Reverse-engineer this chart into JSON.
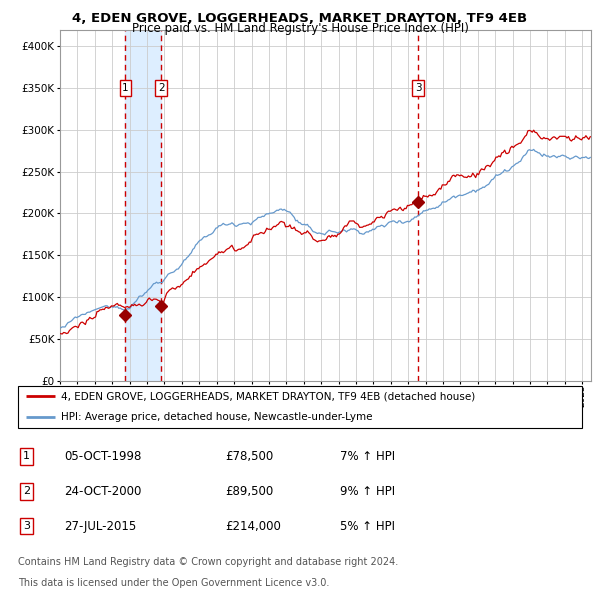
{
  "title": "4, EDEN GROVE, LOGGERHEADS, MARKET DRAYTON, TF9 4EB",
  "subtitle": "Price paid vs. HM Land Registry's House Price Index (HPI)",
  "legend_line1": "4, EDEN GROVE, LOGGERHEADS, MARKET DRAYTON, TF9 4EB (detached house)",
  "legend_line2": "HPI: Average price, detached house, Newcastle-under-Lyme",
  "footer1": "Contains HM Land Registry data © Crown copyright and database right 2024.",
  "footer2": "This data is licensed under the Open Government Licence v3.0.",
  "transactions": [
    {
      "id": 1,
      "date": "05-OCT-1998",
      "price": 78500,
      "pct": "7%",
      "direction": "↑"
    },
    {
      "id": 2,
      "date": "24-OCT-2000",
      "price": 89500,
      "pct": "9%",
      "direction": "↑"
    },
    {
      "id": 3,
      "date": "27-JUL-2015",
      "price": 214000,
      "pct": "5%",
      "direction": "↑"
    }
  ],
  "transaction_dates_num": [
    1998.76,
    2000.81,
    2015.57
  ],
  "transaction_prices": [
    78500,
    89500,
    214000
  ],
  "ylim": [
    0,
    420000
  ],
  "yticks": [
    0,
    50000,
    100000,
    150000,
    200000,
    250000,
    300000,
    350000,
    400000
  ],
  "xlim_start": 1995,
  "xlim_end": 2025.5,
  "red_line_color": "#cc0000",
  "blue_line_color": "#6699cc",
  "shaded_color": "#ddeeff",
  "dashed_color": "#cc0000",
  "grid_color": "#cccccc",
  "background_color": "#ffffff",
  "transaction_marker_color": "#990000"
}
